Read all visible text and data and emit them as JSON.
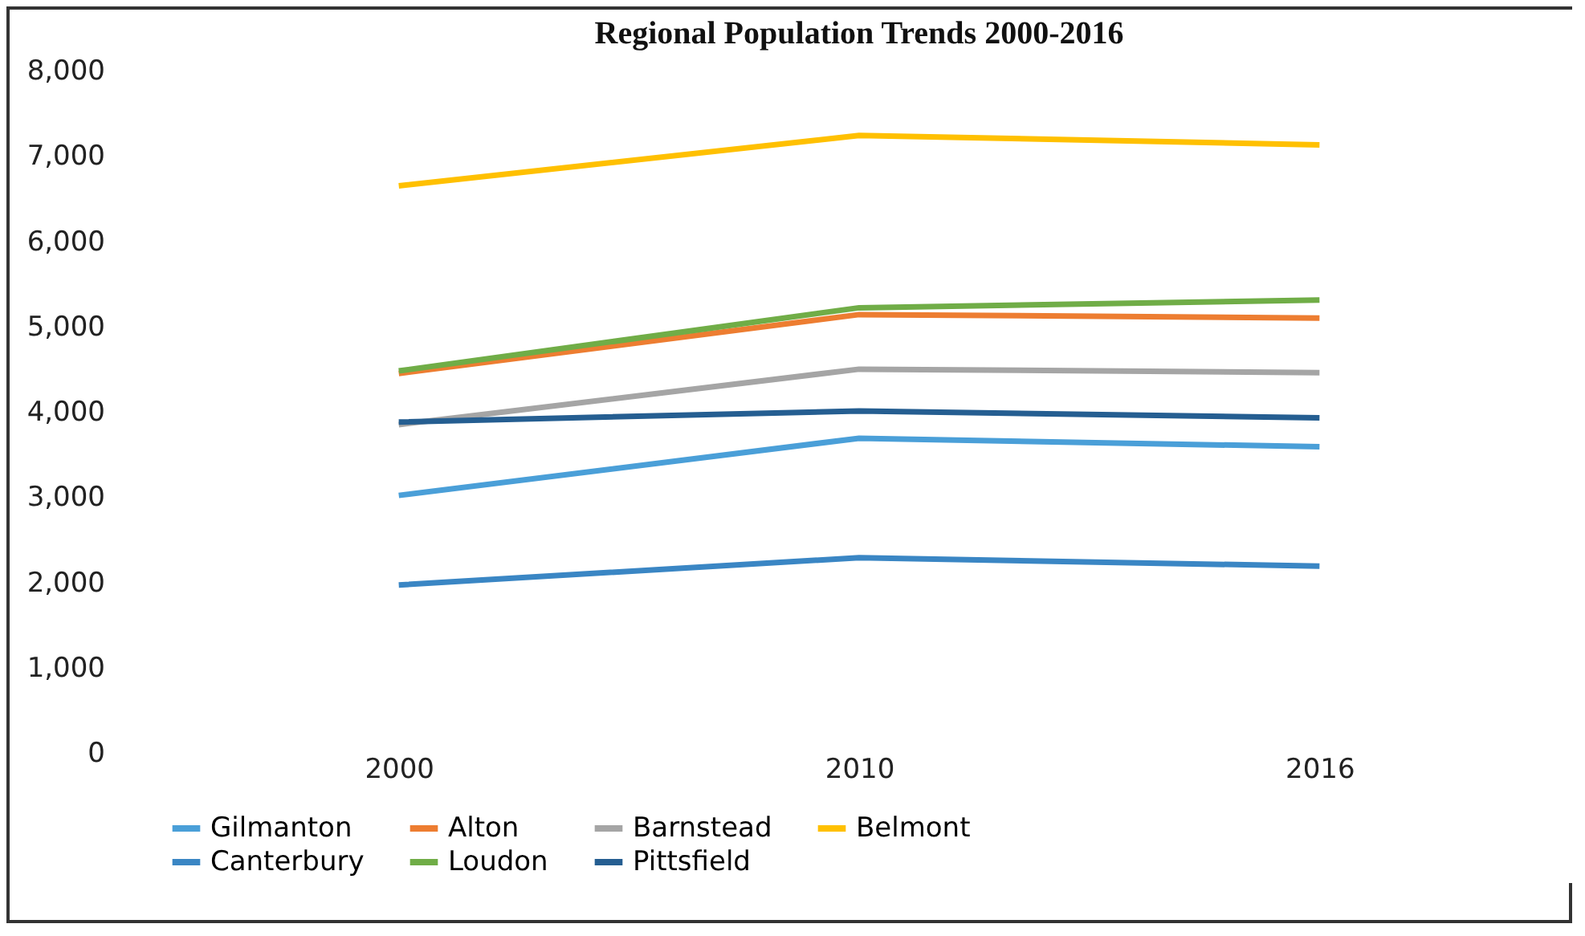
{
  "chart_data": {
    "type": "line",
    "title": "Regional Population Trends 2000-2016",
    "categories": [
      "2000",
      "2010",
      "2016"
    ],
    "series": [
      {
        "name": "Gilmanton",
        "color": "#4a9fd8",
        "values": [
          3020,
          3690,
          3590
        ]
      },
      {
        "name": "Alton",
        "color": "#ed7d31",
        "values": [
          4450,
          5140,
          5100
        ]
      },
      {
        "name": "Barnstead",
        "color": "#a5a5a5",
        "values": [
          3850,
          4500,
          4460
        ]
      },
      {
        "name": "Belmont",
        "color": "#ffc000",
        "values": [
          6650,
          7240,
          7130
        ]
      },
      {
        "name": "Canterbury",
        "color": "#3a86c4",
        "values": [
          1970,
          2290,
          2190
        ]
      },
      {
        "name": "Loudon",
        "color": "#70ad47",
        "values": [
          4480,
          5220,
          5310
        ]
      },
      {
        "name": "Pittsfield",
        "color": "#255e91",
        "values": [
          3880,
          4010,
          3930
        ]
      }
    ],
    "ylim": [
      0,
      8000
    ],
    "yticks": [
      0,
      {
        "value": 1000,
        "label": "1,000"
      },
      {
        "value": 2000,
        "label": "2,000"
      },
      {
        "value": 3000,
        "label": "3,000"
      },
      {
        "value": 4000,
        "label": "4,000"
      },
      {
        "value": 5000,
        "label": "5,000"
      },
      {
        "value": 6000,
        "label": "6,000"
      },
      {
        "value": 7000,
        "label": "7,000"
      },
      {
        "value": 8000,
        "label": "8,000"
      }
    ],
    "grid": false,
    "legend": "bottom",
    "marker": "none",
    "line_style": "solid"
  }
}
